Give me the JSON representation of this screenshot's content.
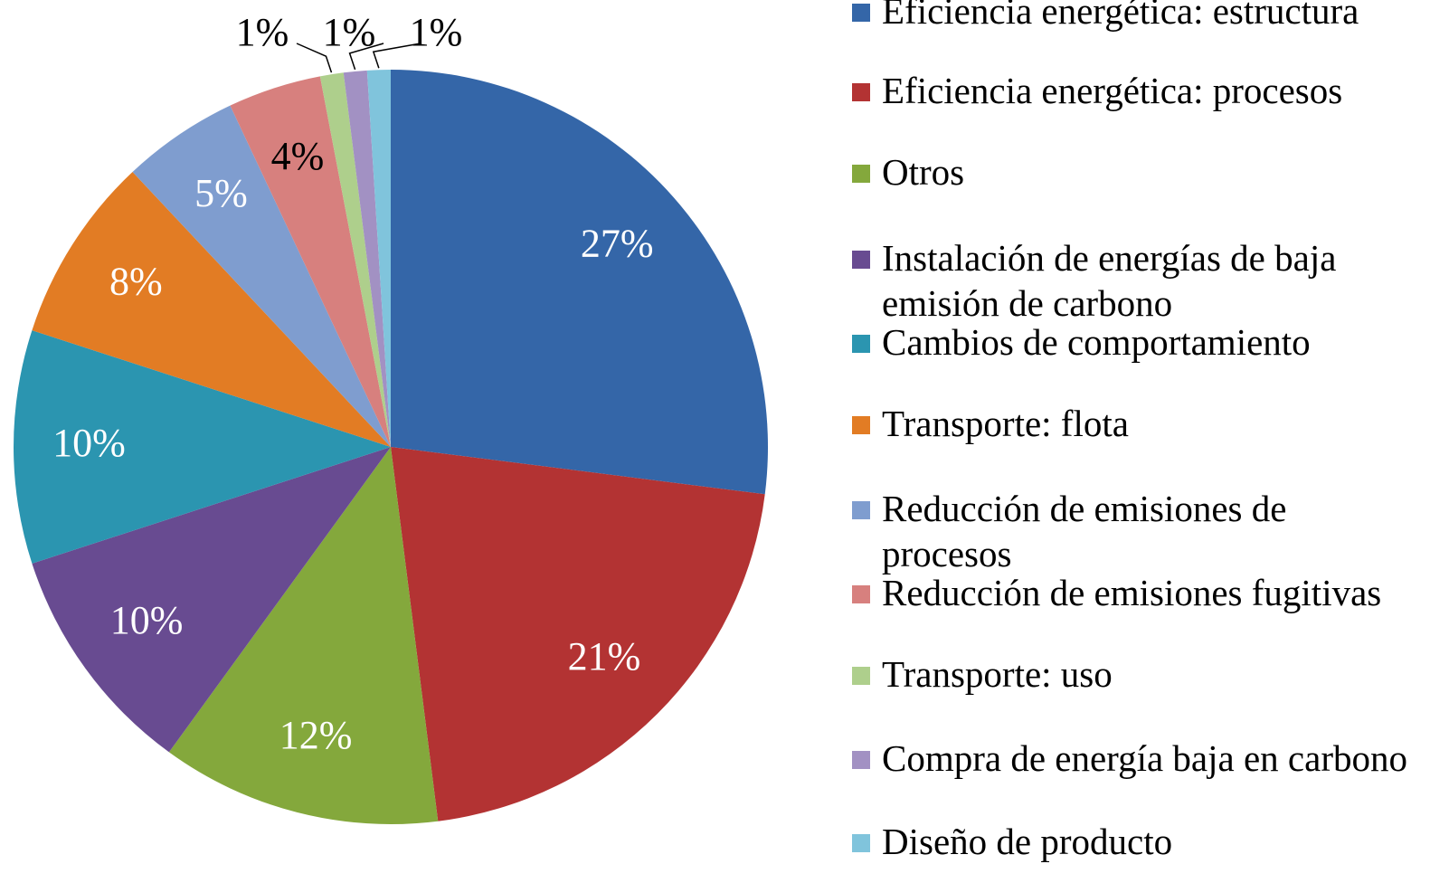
{
  "chart_data": {
    "type": "pie",
    "categories": [
      "Eficiencia energética: estructura",
      "Eficiencia energética: procesos",
      "Otros",
      "Instalación de energías de baja emisión de carbono",
      "Cambios de comportamiento",
      "Transporte: flota",
      "Reducción de emisiones de procesos",
      "Reducción de emisiones fugitivas",
      "Transporte: uso",
      "Compra de energía baja en carbono",
      "Diseño de producto"
    ],
    "values": [
      27,
      21,
      12,
      10,
      10,
      8,
      5,
      4,
      1,
      1,
      1
    ],
    "value_labels": [
      "27%",
      "21%",
      "12%",
      "10%",
      "10%",
      "8%",
      "5%",
      "4%",
      "1%",
      "1%",
      "1%"
    ],
    "colors": [
      "#3466a8",
      "#b33333",
      "#84a83c",
      "#684b91",
      "#2b95b0",
      "#e27c24",
      "#7f9dcf",
      "#d7807e",
      "#aecf8c",
      "#a291c3",
      "#80c4dc"
    ],
    "label_colors": [
      "#ffffff",
      "#ffffff",
      "#ffffff",
      "#ffffff",
      "#ffffff",
      "#ffffff",
      "#ffffff",
      "#000000",
      "#000000",
      "#000000",
      "#000000"
    ],
    "legend": "right"
  }
}
